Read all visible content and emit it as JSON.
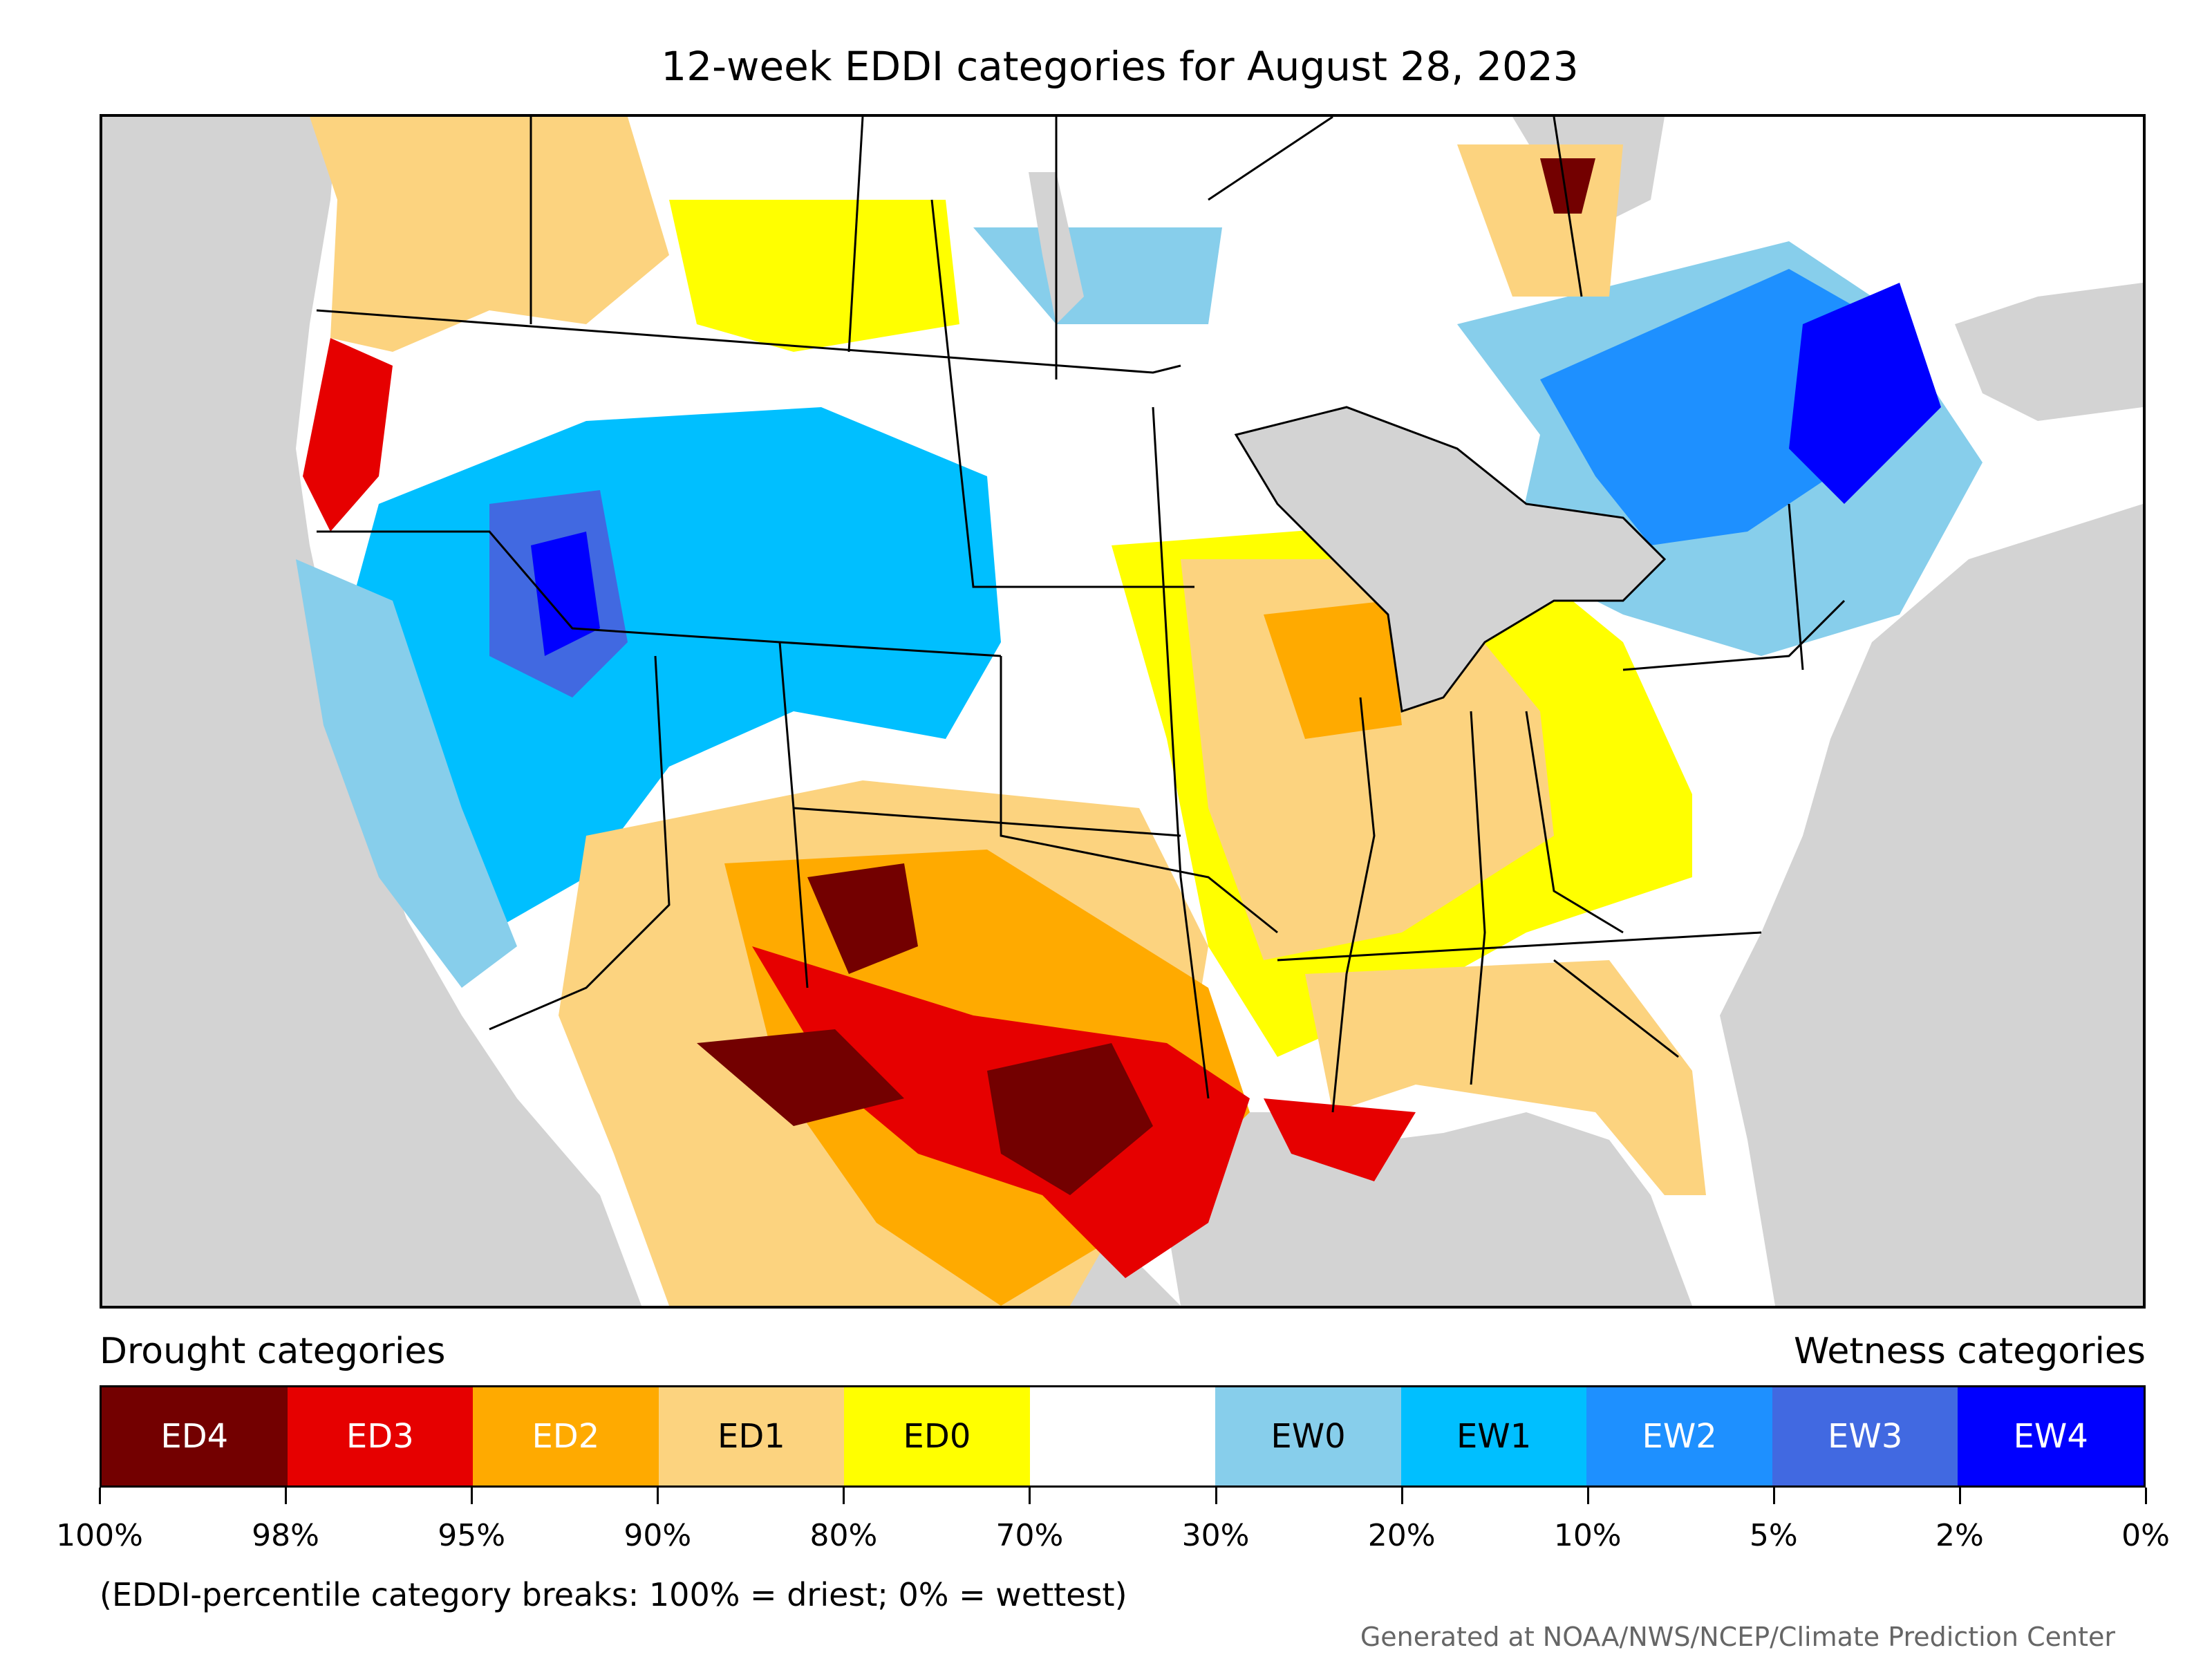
{
  "title": "12-week EDDI categories for August 28, 2023",
  "legend": {
    "drought_heading": "Drought categories",
    "wetness_heading": "Wetness categories",
    "categories": [
      {
        "label": "ED4",
        "color": "#730000",
        "text_color": "#ffffff"
      },
      {
        "label": "ED3",
        "color": "#e60000",
        "text_color": "#ffffff"
      },
      {
        "label": "ED2",
        "color": "#ffaa00",
        "text_color": "#ffffff"
      },
      {
        "label": "ED1",
        "color": "#fcd37f",
        "text_color": "#000000"
      },
      {
        "label": "ED0",
        "color": "#ffff00",
        "text_color": "#000000"
      },
      {
        "label": "",
        "color": "#ffffff",
        "text_color": "#000000"
      },
      {
        "label": "EW0",
        "color": "#87ceeb",
        "text_color": "#000000"
      },
      {
        "label": "EW1",
        "color": "#00bfff",
        "text_color": "#000000"
      },
      {
        "label": "EW2",
        "color": "#1e90ff",
        "text_color": "#ffffff"
      },
      {
        "label": "EW3",
        "color": "#4169e1",
        "text_color": "#ffffff"
      },
      {
        "label": "EW4",
        "color": "#0000ff",
        "text_color": "#ffffff"
      }
    ],
    "breaks": [
      "100%",
      "98%",
      "95%",
      "90%",
      "80%",
      "70%",
      "30%",
      "20%",
      "10%",
      "5%",
      "2%",
      "0%"
    ]
  },
  "note": "(EDDI-percentile category breaks: 100% = driest; 0% = wettest)",
  "credit": "Generated at NOAA/NWS/NCEP/Climate Prediction Center"
}
